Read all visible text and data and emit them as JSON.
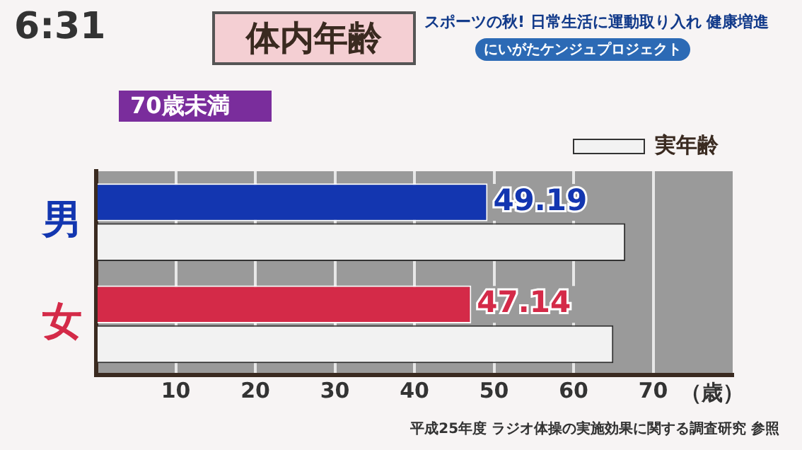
{
  "chart_data": {
    "type": "bar",
    "orientation": "horizontal",
    "title": "体内年齢",
    "subtitle": "70歳未満",
    "xlabel": "（歳）",
    "categories": [
      "男",
      "女"
    ],
    "series": [
      {
        "colors": [
          "#1336b0",
          "#d42a48"
        ],
        "values": [
          49.19,
          47.14
        ],
        "value_labels": [
          "49.19",
          "47.14"
        ]
      },
      {
        "name": "実年齢",
        "color": "#f2f2f2",
        "values": [
          66.5,
          65
        ]
      }
    ],
    "xlim": [
      0,
      80
    ],
    "xticks": [
      {
        "value": 0,
        "label": null
      },
      10,
      20,
      30,
      40,
      50,
      60,
      70
    ],
    "grid": "x",
    "legend": "top right",
    "annotations": [
      "6:31",
      "スポーツの秋! 日常生活に運動取り入れ 健康増進",
      "にいがたケンジュプロジェクト",
      "平成25年度 ラジオ体操の実施効果に関する調査研究 参照"
    ]
  }
}
